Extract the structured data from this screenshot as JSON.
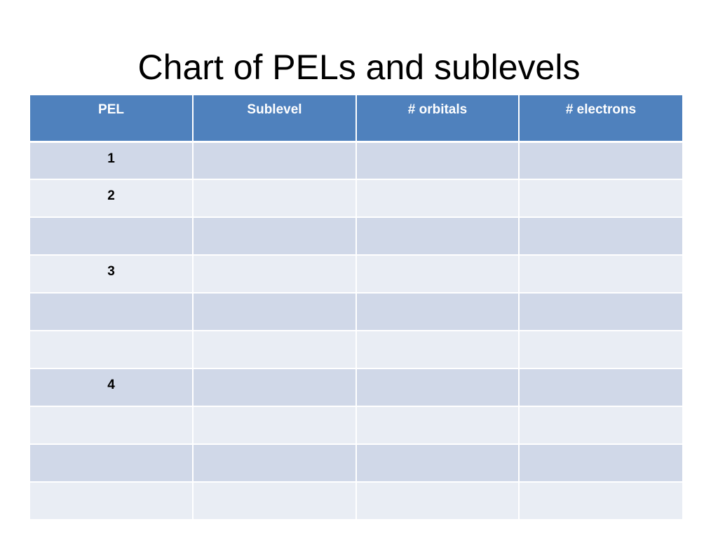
{
  "slide": {
    "title": "Chart of PELs and sublevels"
  },
  "table": {
    "headers": [
      "PEL",
      "Sublevel",
      "# orbitals",
      "# electrons"
    ],
    "rows": [
      [
        "1",
        "",
        "",
        ""
      ],
      [
        "2",
        "",
        "",
        ""
      ],
      [
        "",
        "",
        "",
        ""
      ],
      [
        "3",
        "",
        "",
        ""
      ],
      [
        "",
        "",
        "",
        ""
      ],
      [
        "",
        "",
        "",
        ""
      ],
      [
        "4",
        "",
        "",
        ""
      ],
      [
        "",
        "",
        "",
        ""
      ],
      [
        "",
        "",
        "",
        ""
      ],
      [
        "",
        "",
        "",
        ""
      ]
    ]
  },
  "colors": {
    "header_bg": "#4f81bd",
    "row_odd_bg": "#d0d8e8",
    "row_even_bg": "#e9edf4"
  }
}
